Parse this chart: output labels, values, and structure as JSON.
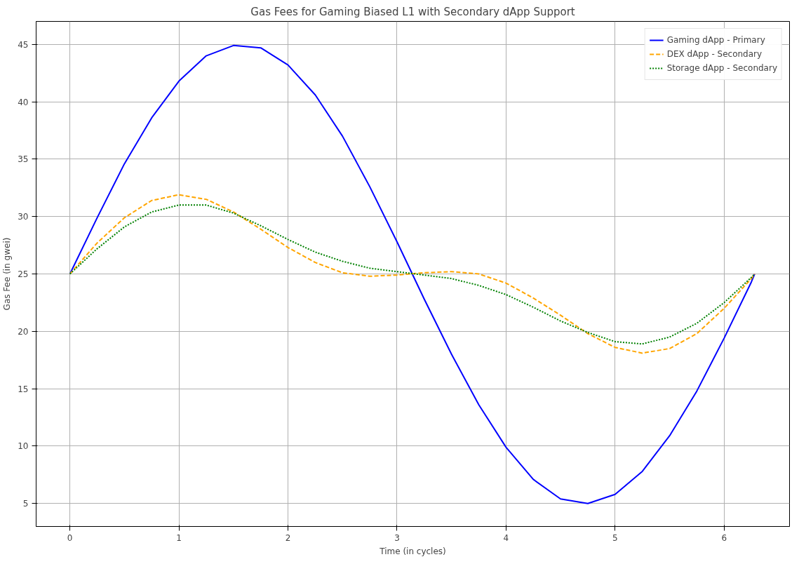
{
  "chart_data": {
    "type": "line",
    "title": "Gas Fees for Gaming Biased L1 with Secondary dApp Support",
    "xlabel": "Time (in cycles)",
    "ylabel": "Gas Fee (in gwei)",
    "x": [
      0,
      0.25,
      0.5,
      0.75,
      1,
      1.25,
      1.5,
      1.75,
      2,
      2.25,
      2.5,
      2.75,
      3,
      3.25,
      3.5,
      3.75,
      4,
      4.25,
      4.5,
      4.75,
      5,
      5.25,
      5.5,
      5.75,
      6,
      6.25,
      6.28
    ],
    "series": [
      {
        "name": "Gaming dApp - Primary",
        "color": "#0000ff",
        "line_style": "solid",
        "values": [
          25,
          29.9,
          34.6,
          38.6,
          41.8,
          44.0,
          44.9,
          44.7,
          43.2,
          40.6,
          37.0,
          32.6,
          27.8,
          22.8,
          18.0,
          13.6,
          9.9,
          7.1,
          5.4,
          5.0,
          5.8,
          7.8,
          10.9,
          14.8,
          19.4,
          24.3,
          25
        ]
      },
      {
        "name": "DEX dApp - Secondary",
        "color": "#ffa500",
        "line_style": "dashed",
        "values": [
          25,
          27.7,
          29.9,
          31.4,
          31.9,
          31.5,
          30.4,
          28.9,
          27.3,
          26.0,
          25.1,
          24.8,
          24.9,
          25.1,
          25.2,
          25.0,
          24.2,
          22.9,
          21.4,
          19.8,
          18.6,
          18.1,
          18.5,
          19.8,
          22.0,
          24.6,
          25
        ]
      },
      {
        "name": "Storage dApp - Secondary",
        "color": "#008000",
        "line_style": "dotted",
        "values": [
          25,
          27.2,
          29.1,
          30.4,
          31.0,
          31.0,
          30.3,
          29.2,
          28.0,
          26.9,
          26.1,
          25.5,
          25.2,
          24.9,
          24.6,
          24.0,
          23.2,
          22.1,
          20.9,
          19.9,
          19.1,
          18.9,
          19.5,
          20.7,
          22.5,
          24.7,
          25
        ]
      }
    ],
    "xlim": [
      -0.31,
      6.6
    ],
    "ylim": [
      3,
      47
    ],
    "xticks": [
      0,
      1,
      2,
      3,
      4,
      5,
      6
    ],
    "yticks": [
      5,
      10,
      15,
      20,
      25,
      30,
      35,
      40,
      45
    ],
    "grid": true,
    "legend": "top right"
  }
}
